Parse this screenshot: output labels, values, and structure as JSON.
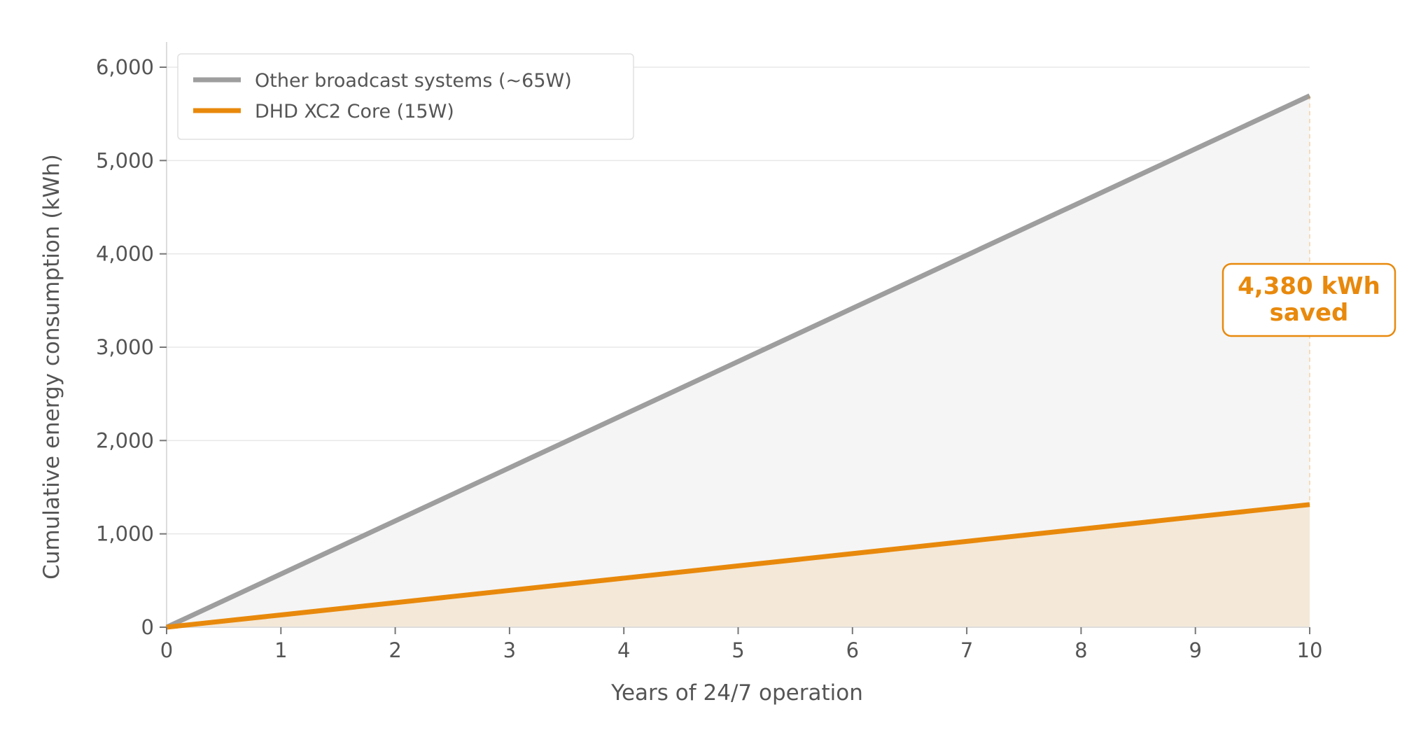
{
  "chart_data": {
    "type": "line",
    "title": "",
    "xlabel": "Years of 24/7 operation",
    "ylabel": "Cumulative energy consumption (kWh)",
    "xlim": [
      0,
      10
    ],
    "ylim": [
      0,
      6300
    ],
    "x_ticks": [
      "0",
      "1",
      "2",
      "3",
      "4",
      "5",
      "6",
      "7",
      "8",
      "9",
      "10"
    ],
    "y_ticks": [
      "0",
      "1,000",
      "2,000",
      "3,000",
      "4,000",
      "5,000",
      "6,000"
    ],
    "grid": "horizontal",
    "legend_position": "top-left",
    "series": [
      {
        "name": "Other broadcast systems (~65W)",
        "color": "#9e9e9e",
        "fill": "#f5f5f5",
        "x": [
          0,
          1,
          2,
          3,
          4,
          5,
          6,
          7,
          8,
          9,
          10
        ],
        "values": [
          0,
          569.4,
          1138.8,
          1708.2,
          2277.6,
          2847,
          3416.4,
          3985.8,
          4555.2,
          5124.6,
          5694
        ]
      },
      {
        "name": "DHD XC2 Core (15W)",
        "color": "#e8890c",
        "fill": "#f4e8d8",
        "x": [
          0,
          1,
          2,
          3,
          4,
          5,
          6,
          7,
          8,
          9,
          10
        ],
        "values": [
          0,
          131.4,
          262.8,
          394.2,
          525.6,
          657,
          788.4,
          919.8,
          1051.2,
          1182.6,
          1314
        ]
      }
    ],
    "annotation": {
      "line1": "4,380 kWh",
      "line2": "saved",
      "x": 10,
      "color": "#e8890c"
    }
  }
}
